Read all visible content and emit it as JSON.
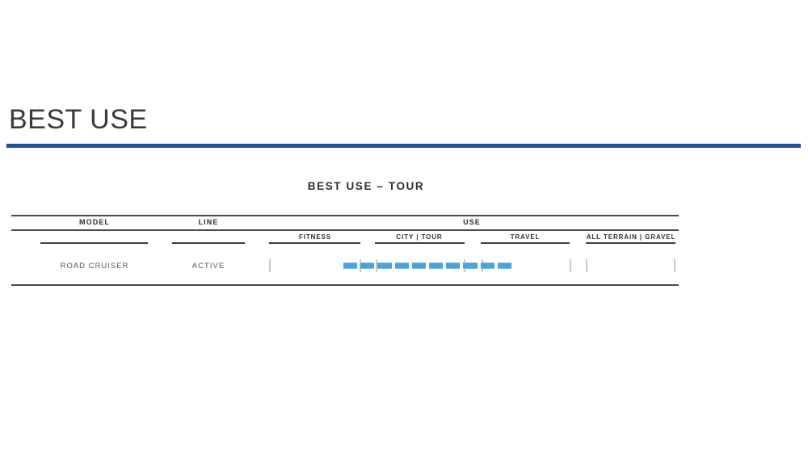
{
  "page": {
    "title": "BEST USE"
  },
  "section": {
    "title": "BEST USE – TOUR"
  },
  "table": {
    "group_headers": {
      "model": "MODEL",
      "line": "LINE",
      "use": "USE"
    },
    "use_columns": [
      "FITNESS",
      "CITY | TOUR",
      "TRAVEL",
      "ALL TERRAIN | GRAVEL"
    ],
    "row": {
      "model": "ROAD CRUISER",
      "line": "ACTIVE",
      "use_range": {
        "from_column": "FITNESS",
        "to_column": "TRAVEL",
        "dash_count": 10
      }
    }
  },
  "colors": {
    "accent_rule": "#1d4f9e",
    "bar_blue": "#4aa3dc",
    "rule_gray": "#4a4a4a",
    "underline_gray": "#3f3f3f",
    "tick_gray": "#c9c9c9",
    "title_text": "#3a3a39",
    "header_text": "#2e2e2d",
    "row_text": "#555555"
  }
}
